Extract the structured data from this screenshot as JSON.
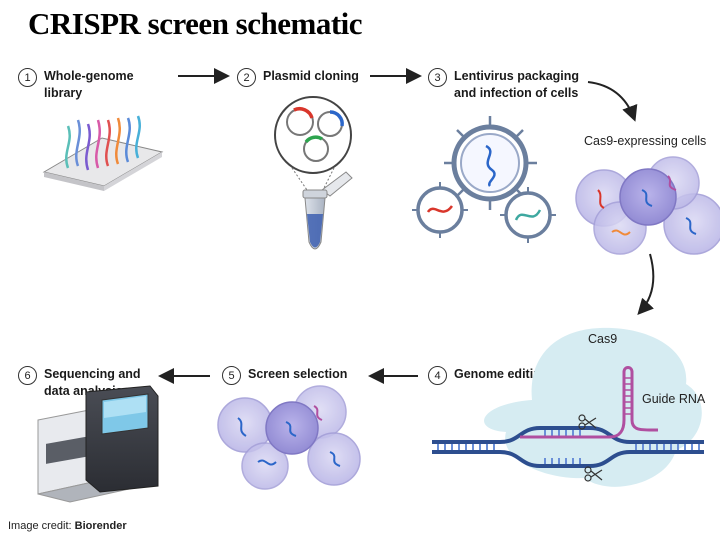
{
  "title": "CRISPR screen schematic",
  "steps": [
    {
      "number": "1",
      "label": "Whole-genome\nlibrary"
    },
    {
      "number": "2",
      "label": "Plasmid cloning"
    },
    {
      "number": "3",
      "label": "Lentivirus packaging\nand infection of cells"
    },
    {
      "number": "4",
      "label": "Genome editing"
    },
    {
      "number": "5",
      "label": "Screen selection"
    },
    {
      "number": "6",
      "label": "Sequencing and\ndata analysis"
    }
  ],
  "labels": {
    "cas9_cells": "Cas9-expressing cells",
    "cas9": "Cas9",
    "guide_rna": "Guide RNA"
  },
  "credit": {
    "prefix": "Image credit: ",
    "source": "Biorender"
  },
  "colors": {
    "cell_fill": "#c9c6ec",
    "cell_dark": "#a49fd8",
    "virus": "#6b7f9e",
    "cas9_blob": "#d6ecf2",
    "dna": "#4a78b8",
    "guide": "#b04fa0"
  }
}
